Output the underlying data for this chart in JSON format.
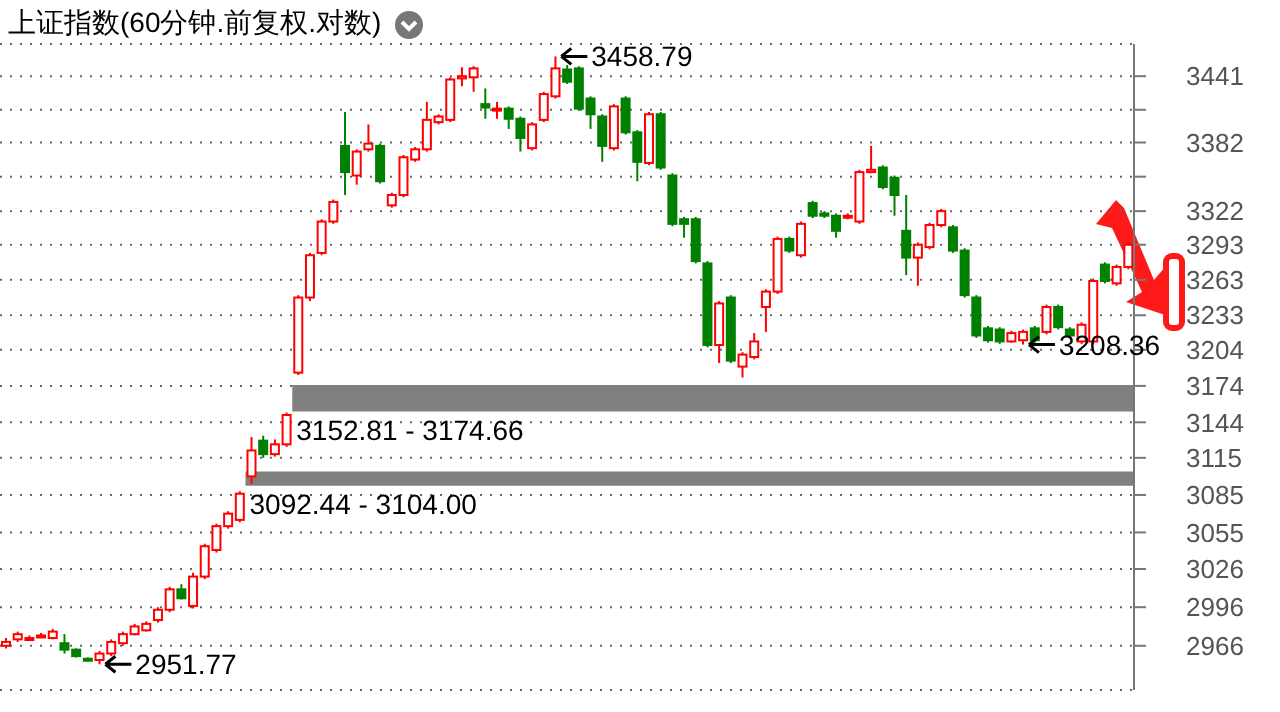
{
  "chart_data": {
    "type": "candlestick",
    "title": "上证指数(60分钟.前复权.对数)",
    "categories": [
      null,
      null,
      null,
      null,
      null,
      null,
      null,
      null,
      null,
      null,
      null,
      null,
      null,
      null,
      null,
      null,
      null,
      null,
      null,
      null,
      null,
      null,
      null,
      null,
      null,
      null,
      null,
      null,
      null,
      null,
      null,
      null,
      null,
      null,
      null,
      null,
      null,
      null,
      null,
      null,
      null,
      null,
      null,
      null,
      null,
      null,
      null,
      null,
      null,
      null,
      null,
      null,
      null,
      null,
      null,
      null,
      null,
      null,
      null,
      null,
      null,
      null,
      null,
      null,
      null,
      null,
      null,
      null,
      null,
      null,
      null,
      null,
      null,
      null,
      null,
      null,
      null,
      null,
      null,
      null,
      null,
      null,
      null,
      null,
      null,
      null,
      null,
      null,
      null,
      null,
      null,
      null,
      null,
      null,
      null,
      null,
      null
    ],
    "ohlc": [
      [
        2966,
        2972,
        2964,
        2969
      ],
      [
        2971,
        2977,
        2969,
        2975
      ],
      [
        2971,
        2974,
        2970,
        2972
      ],
      [
        2973,
        2976,
        2972,
        2974
      ],
      [
        2972,
        2979,
        2971,
        2977
      ],
      [
        2968,
        2975,
        2960,
        2963
      ],
      [
        2963,
        2964,
        2957,
        2958
      ],
      [
        2956,
        2957,
        2954,
        2955
      ],
      [
        2955,
        2962,
        2951.77,
        2960
      ],
      [
        2960,
        2971,
        2958,
        2969
      ],
      [
        2968,
        2977,
        2966,
        2975
      ],
      [
        2975,
        2983,
        2974,
        2981
      ],
      [
        2978,
        2985,
        2977,
        2983
      ],
      [
        2986,
        2996,
        2984,
        2994
      ],
      [
        2994,
        3012,
        2992,
        3010
      ],
      [
        3010,
        3014,
        3002,
        3003
      ],
      [
        2997,
        3023,
        2995,
        3020
      ],
      [
        3020,
        3046,
        3018,
        3044
      ],
      [
        3041,
        3062,
        3039,
        3060
      ],
      [
        3060,
        3072,
        3058,
        3070
      ],
      [
        3065,
        3088,
        3063,
        3086
      ],
      [
        3100,
        3132,
        3094,
        3121
      ],
      [
        3129,
        3133,
        3115,
        3118
      ],
      [
        3118,
        3130,
        3116,
        3126
      ],
      [
        3126,
        3152,
        3124,
        3150
      ],
      [
        3185,
        3250,
        3183,
        3248
      ],
      [
        3248,
        3286,
        3245,
        3284
      ],
      [
        3286,
        3315,
        3284,
        3313
      ],
      [
        3313,
        3332,
        3311,
        3330
      ],
      [
        3379,
        3409,
        3336,
        3356
      ],
      [
        3353,
        3376,
        3345,
        3374
      ],
      [
        3376,
        3398,
        3374,
        3381
      ],
      [
        3379,
        3381,
        3346,
        3348
      ],
      [
        3327,
        3338,
        3325,
        3336
      ],
      [
        3336,
        3371,
        3334,
        3369
      ],
      [
        3367,
        3378,
        3365,
        3376
      ],
      [
        3376,
        3418,
        3374,
        3402
      ],
      [
        3400,
        3407,
        3398,
        3405
      ],
      [
        3402,
        3440,
        3400,
        3438
      ],
      [
        3439,
        3449,
        3432,
        3441
      ],
      [
        3440,
        3450,
        3427,
        3448
      ],
      [
        3416,
        3430,
        3403,
        3413
      ],
      [
        3411,
        3418,
        3403,
        3412
      ],
      [
        3412,
        3414,
        3394,
        3403
      ],
      [
        3403,
        3405,
        3374,
        3386
      ],
      [
        3377,
        3400,
        3375,
        3398
      ],
      [
        3402,
        3427,
        3400,
        3425
      ],
      [
        3423,
        3458.79,
        3421,
        3448
      ],
      [
        3447,
        3451,
        3434,
        3436
      ],
      [
        3448,
        3450,
        3410,
        3412
      ],
      [
        3421,
        3423,
        3394,
        3407
      ],
      [
        3405,
        3407,
        3365,
        3379
      ],
      [
        3377,
        3416,
        3375,
        3414
      ],
      [
        3421,
        3423,
        3389,
        3391
      ],
      [
        3391,
        3393,
        3348,
        3365
      ],
      [
        3364,
        3409,
        3362,
        3407
      ],
      [
        3407,
        3409,
        3358,
        3360
      ],
      [
        3353,
        3355,
        3309,
        3311
      ],
      [
        3315,
        3317,
        3299,
        3311
      ],
      [
        3315,
        3317,
        3277,
        3279
      ],
      [
        3277,
        3279,
        3206,
        3208
      ],
      [
        3208,
        3245,
        3193,
        3243
      ],
      [
        3248,
        3250,
        3193,
        3195
      ],
      [
        3190,
        3202,
        3181,
        3200
      ],
      [
        3198,
        3218,
        3196,
        3211
      ],
      [
        3240,
        3255,
        3219,
        3253
      ],
      [
        3253,
        3300,
        3251,
        3298
      ],
      [
        3298,
        3300,
        3286,
        3288
      ],
      [
        3284,
        3313,
        3282,
        3311
      ],
      [
        3329,
        3331,
        3316,
        3318
      ],
      [
        3320,
        3322,
        3316,
        3318
      ],
      [
        3318,
        3320,
        3299,
        3305
      ],
      [
        3317,
        3320,
        3315,
        3318
      ],
      [
        3313,
        3358,
        3311,
        3356
      ],
      [
        3356,
        3379,
        3355,
        3358
      ],
      [
        3360,
        3362,
        3341,
        3343
      ],
      [
        3351,
        3353,
        3318,
        3336
      ],
      [
        3305,
        3336,
        3267,
        3282
      ],
      [
        3282,
        3295,
        3258,
        3293
      ],
      [
        3291,
        3312,
        3289,
        3310
      ],
      [
        3310,
        3324,
        3308,
        3322
      ],
      [
        3308,
        3310,
        3286,
        3288
      ],
      [
        3288,
        3290,
        3248,
        3250
      ],
      [
        3248,
        3250,
        3214,
        3216
      ],
      [
        3222,
        3224,
        3210,
        3212
      ],
      [
        3221,
        3223,
        3209,
        3211
      ],
      [
        3211,
        3220,
        3210,
        3218
      ],
      [
        3212,
        3221,
        3208.36,
        3219
      ],
      [
        3222,
        3224,
        3210,
        3212
      ],
      [
        3219,
        3242,
        3217,
        3240
      ],
      [
        3240,
        3242,
        3221,
        3223
      ],
      [
        3221,
        3223,
        3214,
        3216
      ],
      [
        3211,
        3227,
        3209,
        3225
      ],
      [
        3211,
        3264,
        3209,
        3262
      ],
      [
        3276,
        3278,
        3260,
        3262
      ],
      [
        3260,
        3276,
        3258,
        3274
      ],
      [
        3274,
        3295,
        3272,
        3293
      ]
    ],
    "colors": [
      "#ff0000",
      "#ff0000",
      "#ff0000",
      "#ff0000",
      "#ff0000",
      "#008000",
      "#008000",
      "#008000",
      "#ff0000",
      "#ff0000",
      "#ff0000",
      "#ff0000",
      "#ff0000",
      "#ff0000",
      "#ff0000",
      "#008000",
      "#ff0000",
      "#ff0000",
      "#ff0000",
      "#ff0000",
      "#ff0000",
      "#ff0000",
      "#008000",
      "#ff0000",
      "#ff0000",
      "#ff0000",
      "#ff0000",
      "#ff0000",
      "#ff0000",
      "#008000",
      "#ff0000",
      "#ff0000",
      "#008000",
      "#ff0000",
      "#ff0000",
      "#ff0000",
      "#ff0000",
      "#ff0000",
      "#ff0000",
      "#ff0000",
      "#ff0000",
      "#008000",
      "#ff0000",
      "#008000",
      "#008000",
      "#ff0000",
      "#ff0000",
      "#ff0000",
      "#008000",
      "#008000",
      "#008000",
      "#008000",
      "#ff0000",
      "#008000",
      "#008000",
      "#ff0000",
      "#008000",
      "#008000",
      "#008000",
      "#008000",
      "#008000",
      "#ff0000",
      "#008000",
      "#ff0000",
      "#ff0000",
      "#ff0000",
      "#ff0000",
      "#008000",
      "#ff0000",
      "#008000",
      "#008000",
      "#008000",
      "#ff0000",
      "#ff0000",
      "#ff0000",
      "#008000",
      "#008000",
      "#008000",
      "#ff0000",
      "#ff0000",
      "#ff0000",
      "#008000",
      "#008000",
      "#008000",
      "#008000",
      "#008000",
      "#ff0000",
      "#ff0000",
      "#008000",
      "#ff0000",
      "#008000",
      "#008000",
      "#ff0000",
      "#ff0000",
      "#008000",
      "#ff0000",
      "#ff0000"
    ],
    "ylim": [
      2932,
      3470
    ],
    "log": true,
    "yticks": [
      2966,
      2996,
      3026,
      3055,
      3085,
      3115,
      3144,
      3174,
      3204,
      3233,
      3263,
      3293,
      3322,
      {
        "value": 3352,
        "label": null
      },
      3382,
      {
        "value": 3411,
        "label": null
      },
      3441
    ],
    "grid": "y",
    "tick_labels": "y",
    "bands": [
      {
        "axis": "y",
        "from": 3152.81,
        "to": 3174.66,
        "label": "3152.81 - 3174.66",
        "color": "#808080"
      },
      {
        "axis": "y",
        "from": 3092.44,
        "to": 3104.0,
        "label": "3092.44 - 3104.00",
        "color": "#808080"
      }
    ],
    "annotations": [
      "3458.79",
      "2951.77",
      "3208.36"
    ]
  }
}
